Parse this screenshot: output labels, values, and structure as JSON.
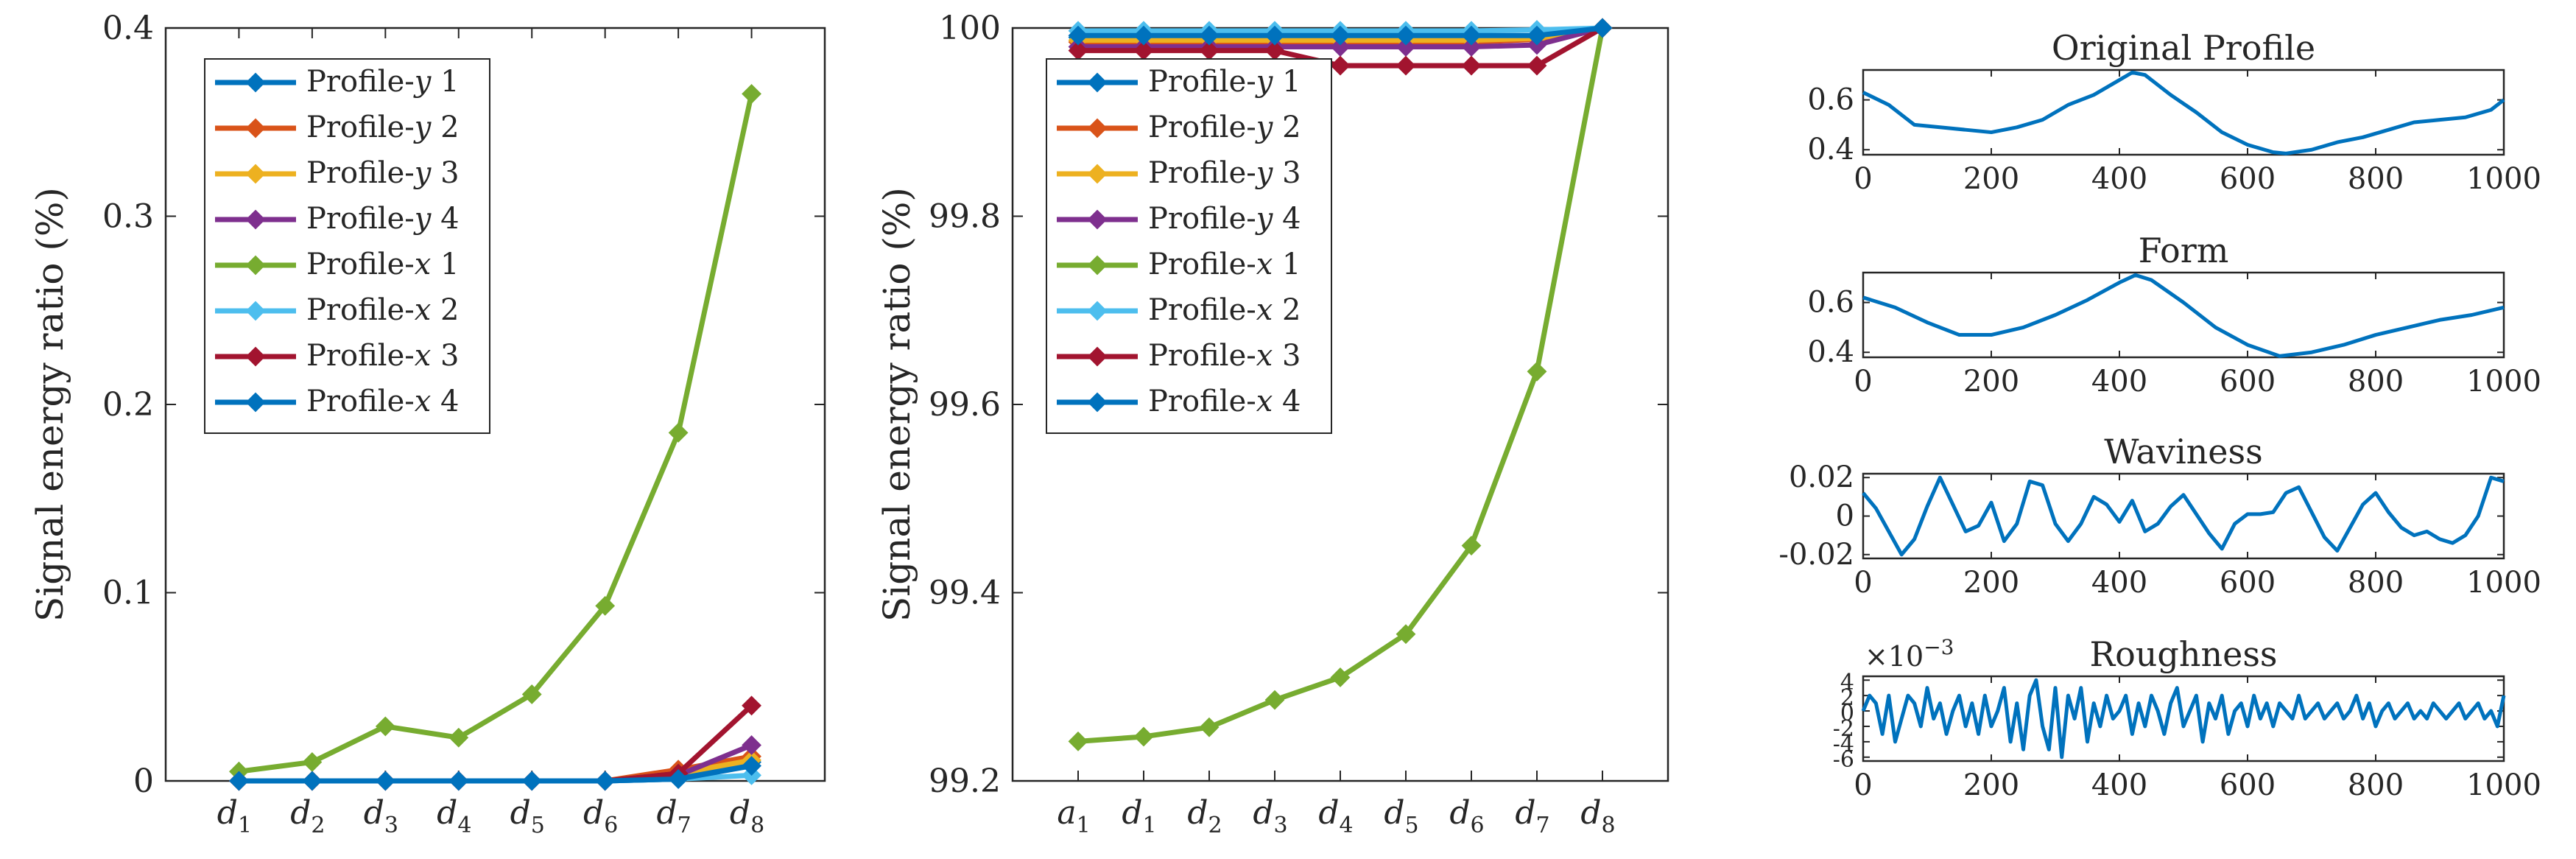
{
  "colors": {
    "blue": "#0072BD",
    "orange": "#D95319",
    "yellow": "#EDB120",
    "purple": "#7E2F8E",
    "green": "#77AC30",
    "cyan": "#4DBEEE",
    "maroon": "#A2142F",
    "axis": "#262626"
  },
  "chart_data": [
    {
      "type": "line",
      "title": "",
      "ylabel": "Signal energy ratio (%)",
      "xlabel": "",
      "categories": [
        {
          "base": "d",
          "sub": "1"
        },
        {
          "base": "d",
          "sub": "2"
        },
        {
          "base": "d",
          "sub": "3"
        },
        {
          "base": "d",
          "sub": "4"
        },
        {
          "base": "d",
          "sub": "5"
        },
        {
          "base": "d",
          "sub": "6"
        },
        {
          "base": "d",
          "sub": "7"
        },
        {
          "base": "d",
          "sub": "8"
        }
      ],
      "ylim": [
        0,
        0.4
      ],
      "yticks": [
        "0",
        "0.1",
        "0.2",
        "0.3",
        "0.4"
      ],
      "ytick_values": [
        0,
        0.1,
        0.2,
        0.3,
        0.4
      ],
      "legend_position": "top-left",
      "series": [
        {
          "name": "Profile-y 1",
          "color": "#0072BD",
          "values": [
            0,
            0,
            0,
            0,
            0,
            0,
            0.001,
            0.01
          ]
        },
        {
          "name": "Profile-y 2",
          "color": "#D95319",
          "values": [
            0,
            0,
            0,
            0,
            0,
            0,
            0.006,
            0.013
          ]
        },
        {
          "name": "Profile-y 3",
          "color": "#EDB120",
          "values": [
            0,
            0,
            0,
            0,
            0,
            0,
            0.004,
            0.011
          ]
        },
        {
          "name": "Profile-y 4",
          "color": "#7E2F8E",
          "values": [
            0,
            0,
            0,
            0,
            0,
            0,
            0.003,
            0.019
          ]
        },
        {
          "name": "Profile-x 1",
          "color": "#77AC30",
          "values": [
            0.005,
            0.01,
            0.029,
            0.023,
            0.046,
            0.093,
            0.185,
            0.365
          ]
        },
        {
          "name": "Profile-x 2",
          "color": "#4DBEEE",
          "values": [
            0,
            0,
            0,
            0,
            0,
            0,
            0.001,
            0.003
          ]
        },
        {
          "name": "Profile-x 3",
          "color": "#A2142F",
          "values": [
            0,
            0,
            0,
            0,
            0,
            0,
            0.004,
            0.04
          ]
        },
        {
          "name": "Profile-x 4",
          "color": "#0072BD",
          "values": [
            0,
            0,
            0,
            0,
            0,
            0,
            0.001,
            0.008
          ]
        }
      ]
    },
    {
      "type": "line",
      "title": "",
      "ylabel": "Signal energy ratio (%)",
      "xlabel": "",
      "categories": [
        {
          "base": "a",
          "sub": "1"
        },
        {
          "base": "d",
          "sub": "1"
        },
        {
          "base": "d",
          "sub": "2"
        },
        {
          "base": "d",
          "sub": "3"
        },
        {
          "base": "d",
          "sub": "4"
        },
        {
          "base": "d",
          "sub": "5"
        },
        {
          "base": "d",
          "sub": "6"
        },
        {
          "base": "d",
          "sub": "7"
        },
        {
          "base": "d",
          "sub": "8"
        }
      ],
      "ylim": [
        99.2,
        100
      ],
      "yticks": [
        "99.2",
        "99.4",
        "99.6",
        "99.8",
        "100"
      ],
      "ytick_values": [
        99.2,
        99.4,
        99.6,
        99.8,
        100
      ],
      "legend_position": "top-left",
      "series": [
        {
          "name": "Profile-y 1",
          "color": "#0072BD",
          "values": [
            99.99,
            99.99,
            99.99,
            99.99,
            99.99,
            99.99,
            99.99,
            99.99,
            100
          ]
        },
        {
          "name": "Profile-y 2",
          "color": "#D95319",
          "values": [
            99.985,
            99.985,
            99.985,
            99.985,
            99.985,
            99.985,
            99.985,
            99.988,
            100
          ]
        },
        {
          "name": "Profile-y 3",
          "color": "#EDB120",
          "values": [
            99.987,
            99.987,
            99.987,
            99.987,
            99.987,
            99.987,
            99.987,
            99.989,
            100
          ]
        },
        {
          "name": "Profile-y 4",
          "color": "#7E2F8E",
          "values": [
            99.98,
            99.98,
            99.98,
            99.98,
            99.98,
            99.98,
            99.98,
            99.982,
            100
          ]
        },
        {
          "name": "Profile-x 1",
          "color": "#77AC30",
          "values": [
            99.242,
            99.247,
            99.257,
            99.286,
            99.31,
            99.356,
            99.45,
            99.635,
            100
          ]
        },
        {
          "name": "Profile-x 2",
          "color": "#4DBEEE",
          "values": [
            99.997,
            99.997,
            99.997,
            99.997,
            99.997,
            99.997,
            99.997,
            99.998,
            100
          ]
        },
        {
          "name": "Profile-x 3",
          "color": "#A2142F",
          "values": [
            99.976,
            99.976,
            99.976,
            99.976,
            99.96,
            99.96,
            99.96,
            99.96,
            100
          ]
        },
        {
          "name": "Profile-x 4",
          "color": "#0072BD",
          "values": [
            99.992,
            99.992,
            99.992,
            99.992,
            99.992,
            99.992,
            99.992,
            99.992,
            100
          ]
        }
      ]
    },
    {
      "type": "line",
      "title": "Original Profile",
      "xlim": [
        0,
        1000
      ],
      "xticks": [
        "0",
        "200",
        "400",
        "600",
        "800",
        "1000"
      ],
      "xtick_values": [
        0,
        200,
        400,
        600,
        800,
        1000
      ],
      "ylim": [
        0.38,
        0.72
      ],
      "yticks": [
        "0.4",
        "0.6"
      ],
      "ytick_values": [
        0.4,
        0.6
      ],
      "x": [
        0,
        40,
        80,
        120,
        160,
        200,
        240,
        280,
        320,
        360,
        400,
        420,
        440,
        480,
        520,
        560,
        600,
        640,
        660,
        700,
        740,
        780,
        820,
        860,
        900,
        940,
        980,
        1000
      ],
      "y": [
        0.63,
        0.58,
        0.5,
        0.49,
        0.48,
        0.47,
        0.49,
        0.52,
        0.58,
        0.62,
        0.68,
        0.71,
        0.7,
        0.62,
        0.55,
        0.47,
        0.42,
        0.39,
        0.385,
        0.4,
        0.43,
        0.45,
        0.48,
        0.51,
        0.52,
        0.53,
        0.56,
        0.6
      ]
    },
    {
      "type": "line",
      "title": "Form",
      "xlim": [
        0,
        1000
      ],
      "xticks": [
        "0",
        "200",
        "400",
        "600",
        "800",
        "1000"
      ],
      "xtick_values": [
        0,
        200,
        400,
        600,
        800,
        1000
      ],
      "ylim": [
        0.38,
        0.72
      ],
      "yticks": [
        "0.4",
        "0.6"
      ],
      "ytick_values": [
        0.4,
        0.6
      ],
      "x": [
        0,
        50,
        100,
        150,
        200,
        250,
        300,
        350,
        400,
        425,
        450,
        500,
        550,
        600,
        650,
        700,
        750,
        800,
        850,
        900,
        950,
        1000
      ],
      "y": [
        0.62,
        0.58,
        0.52,
        0.47,
        0.47,
        0.5,
        0.55,
        0.61,
        0.68,
        0.71,
        0.69,
        0.6,
        0.5,
        0.43,
        0.385,
        0.4,
        0.43,
        0.47,
        0.5,
        0.53,
        0.55,
        0.58
      ]
    },
    {
      "type": "line",
      "title": "Waviness",
      "xlim": [
        0,
        1000
      ],
      "xticks": [
        "0",
        "200",
        "400",
        "600",
        "800",
        "1000"
      ],
      "xtick_values": [
        0,
        200,
        400,
        600,
        800,
        1000
      ],
      "ylim": [
        -0.022,
        0.022
      ],
      "yticks": [
        "-0.02",
        "0",
        "0.02"
      ],
      "ytick_values": [
        -0.02,
        0,
        0.02
      ],
      "x": [
        0,
        20,
        40,
        60,
        80,
        100,
        120,
        140,
        160,
        180,
        200,
        220,
        240,
        260,
        280,
        300,
        320,
        340,
        360,
        380,
        400,
        420,
        440,
        460,
        480,
        500,
        520,
        540,
        560,
        580,
        600,
        620,
        640,
        660,
        680,
        700,
        720,
        740,
        760,
        780,
        800,
        820,
        840,
        860,
        880,
        900,
        920,
        940,
        960,
        980,
        1000
      ],
      "y": [
        0.012,
        0.004,
        -0.008,
        -0.02,
        -0.012,
        0.005,
        0.02,
        0.006,
        -0.008,
        -0.005,
        0.007,
        -0.013,
        -0.004,
        0.018,
        0.016,
        -0.004,
        -0.013,
        -0.004,
        0.01,
        0.006,
        -0.003,
        0.008,
        -0.008,
        -0.004,
        0.005,
        0.011,
        0.001,
        -0.009,
        -0.017,
        -0.004,
        0.001,
        0.001,
        0.002,
        0.012,
        0.015,
        0.002,
        -0.011,
        -0.018,
        -0.006,
        0.006,
        0.012,
        0.002,
        -0.006,
        -0.01,
        -0.008,
        -0.012,
        -0.014,
        -0.01,
        0.0,
        0.02,
        0.018
      ]
    },
    {
      "type": "line",
      "title": "Roughness",
      "exponent_label": "×10^-3",
      "exponent_base": "×10",
      "exponent_power": "−3",
      "xlim": [
        0,
        1000
      ],
      "xticks": [
        "0",
        "200",
        "400",
        "600",
        "800",
        "1000"
      ],
      "xtick_values": [
        0,
        200,
        400,
        600,
        800,
        1000
      ],
      "ylim": [
        -6.5,
        4.5
      ],
      "yticks": [
        "4",
        "2",
        "0",
        "-2",
        "-4",
        "-6"
      ],
      "ytick_values": [
        4,
        2,
        0,
        -2,
        -4,
        -6
      ],
      "x": [
        0,
        10,
        20,
        30,
        40,
        50,
        60,
        70,
        80,
        90,
        100,
        110,
        120,
        130,
        140,
        150,
        160,
        170,
        180,
        190,
        200,
        210,
        220,
        230,
        240,
        250,
        260,
        270,
        280,
        290,
        300,
        310,
        320,
        330,
        340,
        350,
        360,
        370,
        380,
        390,
        400,
        410,
        420,
        430,
        440,
        450,
        460,
        470,
        480,
        490,
        500,
        510,
        520,
        530,
        540,
        550,
        560,
        570,
        580,
        590,
        600,
        610,
        620,
        630,
        640,
        650,
        660,
        670,
        680,
        690,
        700,
        710,
        720,
        730,
        740,
        750,
        760,
        770,
        780,
        790,
        800,
        810,
        820,
        830,
        840,
        850,
        860,
        870,
        880,
        890,
        900,
        910,
        920,
        930,
        940,
        950,
        960,
        970,
        980,
        990,
        1000
      ],
      "y": [
        0,
        2,
        1,
        -3,
        2,
        -4,
        -1,
        2,
        1,
        -2,
        3,
        -1,
        1,
        -3,
        0,
        2,
        -2,
        1,
        -3,
        2,
        -2,
        0,
        3,
        -4,
        1,
        -5,
        2,
        4,
        -2,
        -5,
        3,
        -6,
        2,
        -1,
        3,
        -4,
        1,
        -2,
        2,
        -1,
        0,
        2,
        -3,
        1,
        -2,
        2,
        0,
        -3,
        1,
        3,
        -2,
        0,
        2,
        -4,
        1,
        -1,
        2,
        -3,
        0,
        1,
        -2,
        2,
        -1,
        1,
        -2,
        1,
        0,
        -1,
        2,
        -1,
        0,
        1,
        -1,
        0,
        1,
        -1,
        0,
        2,
        -1,
        1,
        -2,
        0,
        1,
        -1,
        0,
        1,
        -1,
        0,
        -1,
        1,
        0,
        -1,
        0,
        1,
        -1,
        0,
        1,
        -1,
        0,
        -2,
        2
      ]
    }
  ]
}
